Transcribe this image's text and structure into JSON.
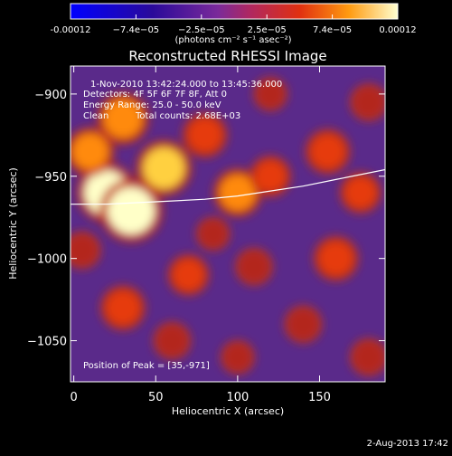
{
  "colorbar": {
    "tick_labels": [
      "-0.00012",
      "−7.4e−05",
      "−2.5e−05",
      "2.5e−05",
      "7.4e−05",
      "0.00012"
    ],
    "units_label": "(photons cm⁻² s⁻¹ asec⁻²)",
    "range": [
      -0.00012,
      0.00012
    ]
  },
  "chart_data": {
    "type": "heatmap",
    "title": "Reconstructed RHESSI Image",
    "xlabel": "Heliocentric X (arcsec)",
    "ylabel": "Heliocentric Y (arcsec)",
    "xlim": [
      -2,
      190
    ],
    "ylim": [
      -1075,
      -883
    ],
    "x_ticks": [
      0,
      50,
      100,
      150
    ],
    "y_ticks": [
      -900,
      -950,
      -1000,
      -1050
    ],
    "annotations": {
      "time_range": "1-Nov-2010 13:42:24.000 to 13:45:36.000",
      "detectors": "Detectors: 4F 5F 6F 7F 8F, Att 0",
      "energy_range": "Energy Range: 25.0 - 50.0 keV",
      "method": "Clean",
      "total_counts": "Total counts: 2.68E+03",
      "peak": "Position of Peak = [35,-971]"
    },
    "peak_position": [
      35,
      -971
    ],
    "limb_curve": {
      "x": [
        -2,
        20,
        40,
        60,
        80,
        100,
        120,
        140,
        160,
        190
      ],
      "y": [
        -967,
        -967,
        -966,
        -965,
        -964,
        -962,
        -959,
        -956,
        -952,
        -946
      ]
    },
    "sources": [
      {
        "x": 20,
        "y": -960,
        "value": 0.00011
      },
      {
        "x": 35,
        "y": -971,
        "value": 0.00012
      },
      {
        "x": 55,
        "y": -945,
        "value": 0.0001
      },
      {
        "x": 30,
        "y": -915,
        "value": 9e-05
      },
      {
        "x": 10,
        "y": -935,
        "value": 8e-05
      },
      {
        "x": 80,
        "y": -925,
        "value": 7e-05
      },
      {
        "x": 100,
        "y": -960,
        "value": 8e-05
      },
      {
        "x": 120,
        "y": -950,
        "value": 6e-05
      },
      {
        "x": 155,
        "y": -935,
        "value": 7e-05
      },
      {
        "x": 175,
        "y": -960,
        "value": 6e-05
      },
      {
        "x": 160,
        "y": -1000,
        "value": 7e-05
      },
      {
        "x": 140,
        "y": -1040,
        "value": 5e-05
      },
      {
        "x": 110,
        "y": -1005,
        "value": 5e-05
      },
      {
        "x": 70,
        "y": -1010,
        "value": 6e-05
      },
      {
        "x": 30,
        "y": -1030,
        "value": 7e-05
      },
      {
        "x": 60,
        "y": -1050,
        "value": 5e-05
      },
      {
        "x": 100,
        "y": -1060,
        "value": 4e-05
      },
      {
        "x": 180,
        "y": -1060,
        "value": 5e-05
      },
      {
        "x": 180,
        "y": -905,
        "value": 5e-05
      },
      {
        "x": 120,
        "y": -900,
        "value": 4e-05
      },
      {
        "x": 5,
        "y": -995,
        "value": 5e-05
      },
      {
        "x": 85,
        "y": -985,
        "value": 4e-05
      }
    ]
  },
  "footer": {
    "timestamp": "2-Aug-2013 17:42"
  }
}
